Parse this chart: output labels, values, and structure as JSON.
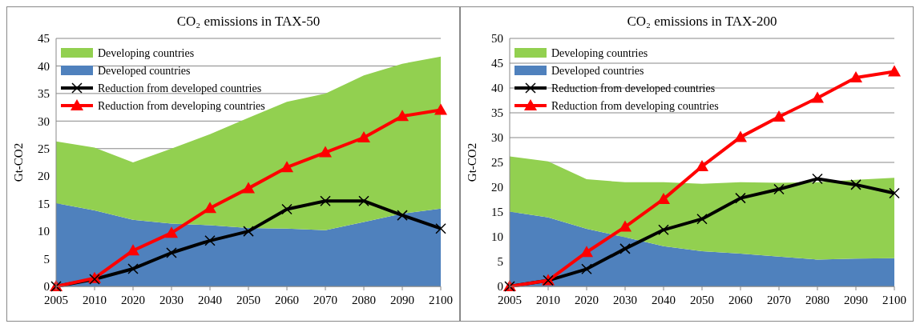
{
  "chart_data": [
    {
      "type": "area",
      "title": "CO₂ emissions  in TAX-50",
      "ylabel": "Gt-CO2",
      "categories": [
        "2005",
        "2010",
        "2020",
        "2030",
        "2040",
        "2050",
        "2060",
        "2070",
        "2080",
        "2090",
        "2100"
      ],
      "stacked": true,
      "ylim": [
        0,
        45
      ],
      "yticks": [
        0,
        5,
        10,
        15,
        20,
        25,
        30,
        35,
        40,
        45
      ],
      "grid": "y",
      "legend": "top left",
      "series": [
        {
          "name": "Developed countries",
          "type": "area",
          "color": "#4f81bd",
          "values": [
            15.1,
            13.8,
            12.1,
            11.4,
            11.1,
            10.6,
            10.5,
            10.2,
            11.7,
            13.2,
            14.1
          ]
        },
        {
          "name": "Developing countries",
          "type": "area",
          "color": "#92d050",
          "values": [
            11.2,
            11.4,
            10.4,
            13.6,
            16.5,
            20.0,
            23.0,
            24.8,
            26.6,
            27.2,
            27.6
          ]
        },
        {
          "name": "Reduction from developed countries",
          "type": "line",
          "color": "#000000",
          "marker": "cross",
          "values": [
            0,
            1.3,
            3.2,
            6.1,
            8.3,
            10.0,
            14.0,
            15.5,
            15.5,
            12.9,
            10.5
          ]
        },
        {
          "name": "Reduction from developing countries",
          "type": "line",
          "color": "#ff0000",
          "marker": "triangle",
          "values": [
            0,
            1.5,
            6.5,
            9.7,
            14.2,
            17.8,
            21.6,
            24.3,
            27.0,
            30.9,
            32.0
          ]
        }
      ]
    },
    {
      "type": "area",
      "title": "CO₂ emissions  in TAX-200",
      "ylabel": "Gt-CO2",
      "categories": [
        "2005",
        "2010",
        "2020",
        "2030",
        "2040",
        "2050",
        "2060",
        "2070",
        "2080",
        "2090",
        "2100"
      ],
      "stacked": true,
      "ylim": [
        0,
        50
      ],
      "yticks": [
        0,
        5,
        10,
        15,
        20,
        25,
        30,
        35,
        40,
        45,
        50
      ],
      "grid": "y",
      "legend": "top left",
      "series": [
        {
          "name": "Developed countries",
          "type": "area",
          "color": "#4f81bd",
          "values": [
            15.1,
            13.9,
            11.6,
            9.9,
            8.1,
            7.1,
            6.6,
            6.0,
            5.4,
            5.6,
            5.7
          ]
        },
        {
          "name": "Developing countries",
          "type": "area",
          "color": "#92d050",
          "values": [
            11.1,
            11.3,
            10.0,
            11.1,
            12.9,
            13.6,
            14.4,
            14.9,
            15.6,
            15.9,
            16.2
          ]
        },
        {
          "name": "Reduction from developed countries",
          "type": "line",
          "color": "#000000",
          "marker": "cross",
          "values": [
            0,
            1.2,
            3.5,
            7.6,
            11.4,
            13.6,
            17.8,
            19.6,
            21.7,
            20.5,
            18.8
          ]
        },
        {
          "name": "Reduction from developing countries",
          "type": "line",
          "color": "#ff0000",
          "marker": "triangle",
          "values": [
            0,
            1.2,
            6.9,
            12.0,
            17.6,
            24.2,
            30.1,
            34.2,
            38.0,
            42.1,
            43.3
          ]
        }
      ]
    }
  ]
}
